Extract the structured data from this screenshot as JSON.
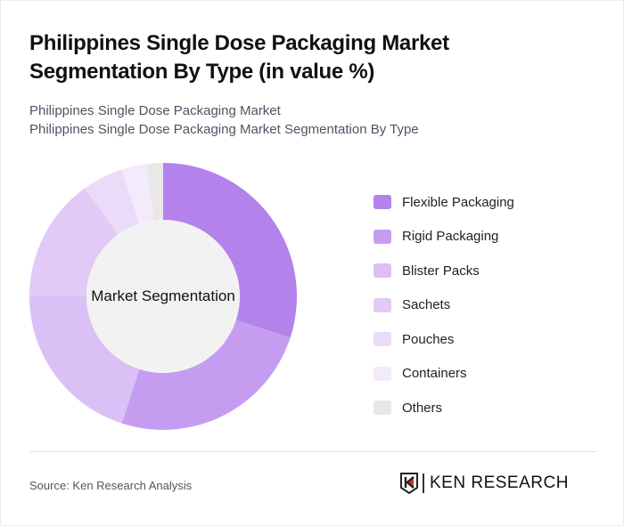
{
  "header": {
    "title": "Philippines Single Dose Packaging Market Segmentation By Type (in value %)",
    "subtitle_line1": "Philippines Single Dose Packaging Market",
    "subtitle_line2": "Philippines Single Dose Packaging Market Segmentation By Type"
  },
  "chart_data": {
    "type": "pie",
    "subtype": "donut",
    "title": "Philippines Single Dose Packaging Market Segmentation By Type (in value %)",
    "center_label": "Market Segmentation",
    "categories": [
      "Flexible Packaging",
      "Rigid Packaging",
      "Blister Packs",
      "Sachets",
      "Pouches",
      "Containers",
      "Others"
    ],
    "values": [
      30,
      25,
      20,
      15,
      5,
      3,
      2
    ],
    "colors": [
      "#b382ea",
      "#c59df0",
      "#dac0f5",
      "#e1cbf6",
      "#eadbf9",
      "#f3ebfc",
      "#e8e8e8"
    ],
    "legend_position": "right"
  },
  "legend": {
    "items": [
      {
        "label": "Flexible Packaging",
        "color": "#b382ea"
      },
      {
        "label": "Rigid Packaging",
        "color": "#c59df0"
      },
      {
        "label": "Blister Packs",
        "color": "#dac0f5"
      },
      {
        "label": "Sachets",
        "color": "#e1cbf6"
      },
      {
        "label": "Pouches",
        "color": "#eadbf9"
      },
      {
        "label": "Containers",
        "color": "#f3ebfc"
      },
      {
        "label": "Others",
        "color": "#e8e8e8"
      }
    ]
  },
  "footer": {
    "source": "Source: Ken Research Analysis",
    "logo_text": "KEN RESEARCH"
  }
}
